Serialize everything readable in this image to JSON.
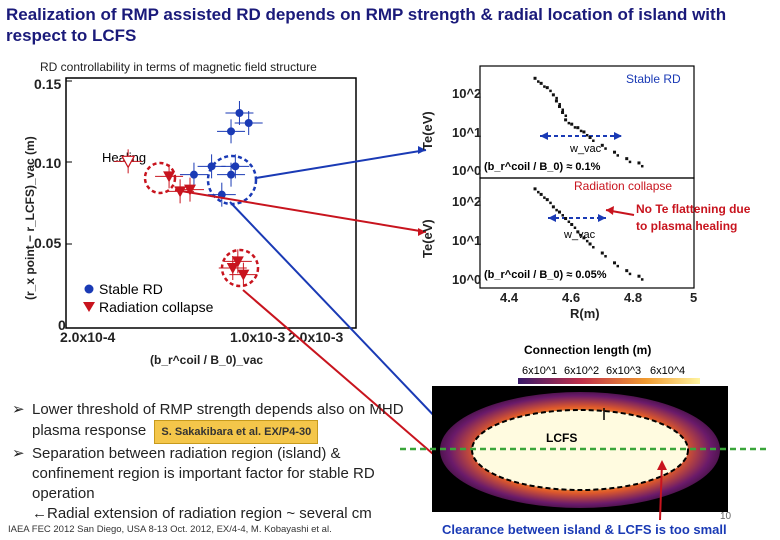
{
  "slide": {
    "title": "Realization of RMP assisted RD depends on RMP strength & radial location of island with respect to LCFS",
    "footer": "IAEA FEC 2012 San Diego, USA 8-13 Oct. 2012, EX/4-4, M. Kobayashi et al.",
    "page_number": "10",
    "clearance_note": "Clearance between island & LCFS is too small"
  },
  "bullets": [
    {
      "text": "Lower threshold of RMP strength depends also on MHD plasma response",
      "citation": "S. Sakakibara et al. EX/P4-30"
    },
    {
      "text": "Separation between radiation region (island) & confinement region is important factor for stable RD operation"
    },
    {
      "text": "Radial extension of radiation region ~ several cm",
      "prefix": "←"
    }
  ],
  "colors": {
    "title": "#1a1a7a",
    "stable": "#1a3ab5",
    "collapse": "#c8141e",
    "citation_bg": "#f4c64a"
  },
  "chart_data": [
    {
      "type": "scatter",
      "title": "RD controllability in terms of magnetic field structure",
      "xlabel": "(b_r^coil / B_0)_vac",
      "ylabel": "(r_x point − r_LCFS)_vac (m)",
      "x_scale": "log",
      "xlim": [
        0.0002,
        0.004
      ],
      "ylim": [
        0,
        0.15
      ],
      "x_tick_labels": [
        "2.0x10-4",
        "1.0x10-3",
        "2.0x10-3"
      ],
      "y_tick_labels": [
        "0",
        "0.05",
        "0.10",
        "0.15"
      ],
      "annotation": "Healing",
      "legend": [
        "Stable RD",
        "Radiation collapse"
      ],
      "series": [
        {
          "name": "Stable RD",
          "marker": "circle",
          "points": [
            {
              "x": 0.00132,
              "y": 0.123
            },
            {
              "x": 0.0012,
              "y": 0.129
            },
            {
              "x": 0.0011,
              "y": 0.118
            },
            {
              "x": 0.00115,
              "y": 0.097
            },
            {
              "x": 0.0009,
              "y": 0.097
            },
            {
              "x": 0.001,
              "y": 0.08
            },
            {
              "x": 0.0011,
              "y": 0.092
            },
            {
              "x": 0.00075,
              "y": 0.092
            }
          ]
        },
        {
          "name": "Radiation collapse",
          "marker": "triangle-down",
          "points": [
            {
              "x": 0.00058,
              "y": 0.091
            },
            {
              "x": 0.00065,
              "y": 0.082
            },
            {
              "x": 0.00072,
              "y": 0.083
            },
            {
              "x": 0.00112,
              "y": 0.036
            },
            {
              "x": 0.00118,
              "y": 0.04
            },
            {
              "x": 0.00125,
              "y": 0.032
            }
          ]
        },
        {
          "name": "Healing",
          "marker": "triangle-down-open",
          "points": [
            {
              "x": 0.00038,
              "y": 0.1
            }
          ]
        }
      ]
    },
    {
      "type": "scatter",
      "title": "Stable RD",
      "xlabel": "R(m)",
      "ylabel": "Te(eV)",
      "x_tick_labels": [
        "4.4",
        "4.6",
        "4.8",
        "5"
      ],
      "y_tick_labels": [
        "10^2",
        "10^1",
        "10^0"
      ],
      "xlim": [
        4.3,
        5.0
      ],
      "ylim": [
        1,
        200
      ],
      "annotations": [
        "w_vac",
        "(b_r^coil / B_0) ≈ 0.1%"
      ],
      "x": [
        4.48,
        4.5,
        4.52,
        4.54,
        4.55,
        4.56,
        4.57,
        4.58,
        4.6,
        4.62,
        4.64,
        4.66,
        4.7,
        4.74,
        4.78,
        4.82
      ],
      "values": [
        130,
        100,
        80,
        55,
        40,
        30,
        22,
        15,
        12,
        10,
        8,
        6,
        4,
        2.8,
        2.0,
        1.6
      ]
    },
    {
      "type": "scatter",
      "title": "Radiation collapse",
      "xlabel": "R(m)",
      "ylabel": "Te(eV)",
      "x_tick_labels": [
        "4.4",
        "4.6",
        "4.8",
        "5"
      ],
      "y_tick_labels": [
        "10^2",
        "10^1",
        "10^0"
      ],
      "xlim": [
        4.3,
        5.0
      ],
      "ylim": [
        1,
        200
      ],
      "annotations": [
        "w_vac",
        "(b_r^coil / B_0) ≈ 0.05%",
        "No Te flattening due to plasma healing"
      ],
      "x": [
        4.48,
        4.5,
        4.52,
        4.54,
        4.56,
        4.58,
        4.6,
        4.62,
        4.64,
        4.66,
        4.7,
        4.74,
        4.78,
        4.82
      ],
      "values": [
        140,
        105,
        80,
        55,
        42,
        30,
        22,
        15,
        11,
        8,
        5,
        3,
        2,
        1.5
      ]
    },
    {
      "type": "heatmap",
      "title": "Connection length (m)",
      "colorbar_labels": [
        "6x10^1",
        "6x10^2",
        "6x10^3",
        "6x10^4"
      ],
      "annotation": "LCFS"
    }
  ]
}
